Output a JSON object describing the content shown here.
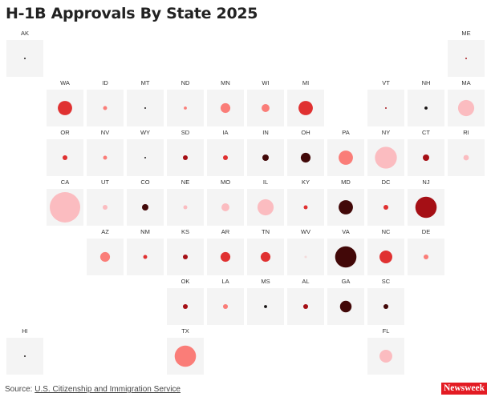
{
  "chart_data": {
    "type": "tile-grid-bubble-map",
    "title": "H-1B Approvals By State 2025",
    "size_note_scale": "bubble size relative to largest (CA = 1)",
    "colors": {
      "black": "#141010",
      "dark": "#420808",
      "darkred": "#a50f15",
      "red": "#e03131",
      "salmon": "#fa7d78",
      "pink": "#fbbcc0",
      "lightpink": "#f3dada"
    },
    "tile_color": "#f4f4f4",
    "states": [
      {
        "abbr": "AK",
        "col": 0,
        "row": 0,
        "size": 0.05,
        "color": "black"
      },
      {
        "abbr": "ME",
        "col": 11,
        "row": 0,
        "size": 0.05,
        "color": "darkred"
      },
      {
        "abbr": "WA",
        "col": 1,
        "row": 1,
        "size": 0.47,
        "color": "red"
      },
      {
        "abbr": "ID",
        "col": 2,
        "row": 1,
        "size": 0.13,
        "color": "salmon"
      },
      {
        "abbr": "MT",
        "col": 3,
        "row": 1,
        "size": 0.05,
        "color": "black"
      },
      {
        "abbr": "ND",
        "col": 4,
        "row": 1,
        "size": 0.1,
        "color": "salmon"
      },
      {
        "abbr": "MN",
        "col": 5,
        "row": 1,
        "size": 0.32,
        "color": "salmon"
      },
      {
        "abbr": "WI",
        "col": 6,
        "row": 1,
        "size": 0.26,
        "color": "salmon"
      },
      {
        "abbr": "MI",
        "col": 7,
        "row": 1,
        "size": 0.47,
        "color": "red"
      },
      {
        "abbr": "VT",
        "col": 9,
        "row": 1,
        "size": 0.05,
        "color": "darkred"
      },
      {
        "abbr": "NH",
        "col": 10,
        "row": 1,
        "size": 0.1,
        "color": "black"
      },
      {
        "abbr": "MA",
        "col": 11,
        "row": 1,
        "size": 0.53,
        "color": "pink"
      },
      {
        "abbr": "OR",
        "col": 1,
        "row": 2,
        "size": 0.16,
        "color": "red"
      },
      {
        "abbr": "NV",
        "col": 2,
        "row": 2,
        "size": 0.13,
        "color": "salmon"
      },
      {
        "abbr": "WY",
        "col": 3,
        "row": 2,
        "size": 0.05,
        "color": "black"
      },
      {
        "abbr": "SD",
        "col": 4,
        "row": 2,
        "size": 0.16,
        "color": "darkred"
      },
      {
        "abbr": "IA",
        "col": 5,
        "row": 2,
        "size": 0.16,
        "color": "red"
      },
      {
        "abbr": "IN",
        "col": 6,
        "row": 2,
        "size": 0.21,
        "color": "dark"
      },
      {
        "abbr": "OH",
        "col": 7,
        "row": 2,
        "size": 0.32,
        "color": "dark"
      },
      {
        "abbr": "PA",
        "col": 8,
        "row": 2,
        "size": 0.47,
        "color": "salmon"
      },
      {
        "abbr": "NY",
        "col": 9,
        "row": 2,
        "size": 0.72,
        "color": "pink"
      },
      {
        "abbr": "CT",
        "col": 10,
        "row": 2,
        "size": 0.21,
        "color": "darkred"
      },
      {
        "abbr": "RI",
        "col": 11,
        "row": 2,
        "size": 0.18,
        "color": "pink"
      },
      {
        "abbr": "CA",
        "col": 1,
        "row": 3,
        "size": 1.0,
        "color": "pink"
      },
      {
        "abbr": "UT",
        "col": 2,
        "row": 3,
        "size": 0.16,
        "color": "pink"
      },
      {
        "abbr": "CO",
        "col": 3,
        "row": 3,
        "size": 0.21,
        "color": "dark"
      },
      {
        "abbr": "NE",
        "col": 4,
        "row": 3,
        "size": 0.13,
        "color": "pink"
      },
      {
        "abbr": "MO",
        "col": 5,
        "row": 3,
        "size": 0.26,
        "color": "pink"
      },
      {
        "abbr": "IL",
        "col": 6,
        "row": 3,
        "size": 0.53,
        "color": "pink"
      },
      {
        "abbr": "KY",
        "col": 7,
        "row": 3,
        "size": 0.13,
        "color": "red"
      },
      {
        "abbr": "MD",
        "col": 8,
        "row": 3,
        "size": 0.47,
        "color": "dark"
      },
      {
        "abbr": "DC",
        "col": 9,
        "row": 3,
        "size": 0.16,
        "color": "red"
      },
      {
        "abbr": "NJ",
        "col": 10,
        "row": 3,
        "size": 0.7,
        "color": "darkred"
      },
      {
        "abbr": "AZ",
        "col": 2,
        "row": 4,
        "size": 0.32,
        "color": "salmon"
      },
      {
        "abbr": "NM",
        "col": 3,
        "row": 4,
        "size": 0.13,
        "color": "red"
      },
      {
        "abbr": "KS",
        "col": 4,
        "row": 4,
        "size": 0.16,
        "color": "darkred"
      },
      {
        "abbr": "AR",
        "col": 5,
        "row": 4,
        "size": 0.32,
        "color": "red"
      },
      {
        "abbr": "TN",
        "col": 6,
        "row": 4,
        "size": 0.32,
        "color": "red"
      },
      {
        "abbr": "WV",
        "col": 7,
        "row": 4,
        "size": 0.08,
        "color": "lightpink"
      },
      {
        "abbr": "VA",
        "col": 8,
        "row": 4,
        "size": 0.7,
        "color": "dark"
      },
      {
        "abbr": "NC",
        "col": 9,
        "row": 4,
        "size": 0.42,
        "color": "red"
      },
      {
        "abbr": "DE",
        "col": 10,
        "row": 4,
        "size": 0.16,
        "color": "salmon"
      },
      {
        "abbr": "OK",
        "col": 4,
        "row": 5,
        "size": 0.16,
        "color": "darkred"
      },
      {
        "abbr": "LA",
        "col": 5,
        "row": 5,
        "size": 0.16,
        "color": "salmon"
      },
      {
        "abbr": "MS",
        "col": 6,
        "row": 5,
        "size": 0.1,
        "color": "black"
      },
      {
        "abbr": "AL",
        "col": 7,
        "row": 5,
        "size": 0.16,
        "color": "darkred"
      },
      {
        "abbr": "GA",
        "col": 8,
        "row": 5,
        "size": 0.38,
        "color": "dark"
      },
      {
        "abbr": "SC",
        "col": 9,
        "row": 5,
        "size": 0.16,
        "color": "dark"
      },
      {
        "abbr": "HI",
        "col": 0,
        "row": 6,
        "size": 0.05,
        "color": "black"
      },
      {
        "abbr": "TX",
        "col": 4,
        "row": 6,
        "size": 0.7,
        "color": "salmon"
      },
      {
        "abbr": "FL",
        "col": 9,
        "row": 6,
        "size": 0.42,
        "color": "pink"
      }
    ]
  },
  "footer": {
    "source_prefix": "Source: ",
    "source_link": "U.S. Citizenship and Immigration Service",
    "logo": "Newsweek"
  }
}
